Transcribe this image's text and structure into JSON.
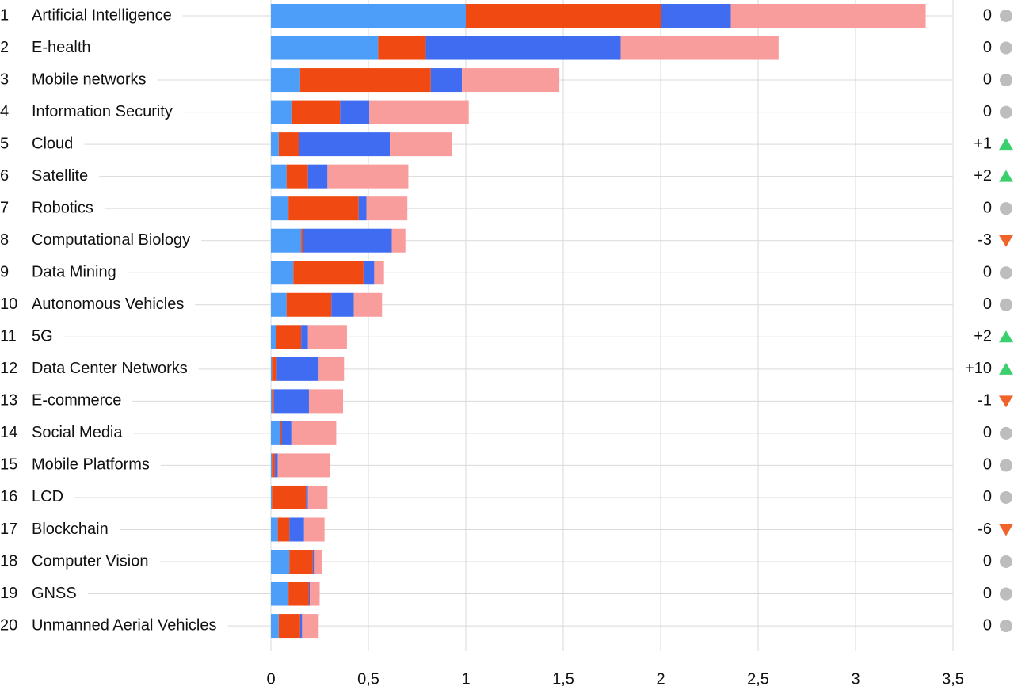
{
  "chart_data": {
    "type": "bar",
    "orientation": "horizontal",
    "stacked": true,
    "ranks": [
      1,
      2,
      3,
      4,
      5,
      6,
      7,
      8,
      9,
      10,
      11,
      12,
      13,
      14,
      15,
      16,
      17,
      18,
      19,
      20
    ],
    "categories": [
      "Artificial Intelligence",
      "E-health",
      "Mobile networks",
      "Information Security",
      "Cloud",
      "Satellite",
      "Robotics",
      "Computational Biology",
      "Data Mining",
      "Autonomous Vehicles",
      "5G",
      "Data Center Networks",
      "E-commerce",
      "Social Media",
      "Mobile Platforms",
      "LCD",
      "Blockchain",
      "Computer Vision",
      "GNSS",
      "Unmanned Aerial Vehicles"
    ],
    "series": [
      {
        "color": "#4d9ef8",
        "values": [
          1.0,
          0.55,
          0.15,
          0.105,
          0.04,
          0.08,
          0.09,
          0.155,
          0.115,
          0.08,
          0.025,
          0.005,
          0.005,
          0.045,
          0.005,
          0.005,
          0.035,
          0.095,
          0.09,
          0.04
        ]
      },
      {
        "color": "#f04a12",
        "values": [
          1.0,
          0.245,
          0.67,
          0.25,
          0.105,
          0.11,
          0.36,
          0.01,
          0.36,
          0.23,
          0.13,
          0.025,
          0.01,
          0.01,
          0.015,
          0.175,
          0.06,
          0.12,
          0.105,
          0.11
        ]
      },
      {
        "color": "#3f6cf0",
        "values": [
          0.36,
          1.0,
          0.16,
          0.15,
          0.465,
          0.1,
          0.04,
          0.455,
          0.055,
          0.115,
          0.035,
          0.215,
          0.18,
          0.05,
          0.015,
          0.01,
          0.075,
          0.01,
          0.005,
          0.01
        ]
      },
      {
        "color": "#f99c9c",
        "values": [
          1.0,
          0.81,
          0.5,
          0.51,
          0.32,
          0.415,
          0.21,
          0.07,
          0.05,
          0.145,
          0.2,
          0.13,
          0.175,
          0.23,
          0.27,
          0.1,
          0.105,
          0.035,
          0.05,
          0.085
        ]
      }
    ],
    "changes": [
      0,
      0,
      0,
      0,
      1,
      2,
      0,
      -3,
      0,
      0,
      2,
      10,
      -1,
      0,
      0,
      0,
      -6,
      0,
      0,
      0
    ],
    "change_labels": [
      "0",
      "0",
      "0",
      "0",
      "+1",
      "+2",
      "0",
      "-3",
      "0",
      "0",
      "+2",
      "+10",
      "-1",
      "0",
      "0",
      "0",
      "-6",
      "0",
      "0",
      "0"
    ],
    "up_color": "#3ccf6e",
    "down_color": "#f0642c",
    "same_color": "#bdbdbd",
    "xlim": [
      0,
      3.5
    ],
    "xticks": [
      0,
      {
        "value": 0.5,
        "label": "0,5"
      },
      1,
      {
        "value": 1.5,
        "label": "1,5"
      },
      2,
      {
        "value": 2.5,
        "label": "2,5"
      },
      3,
      {
        "value": 3.5,
        "label": "3,5"
      }
    ],
    "grid": true
  }
}
